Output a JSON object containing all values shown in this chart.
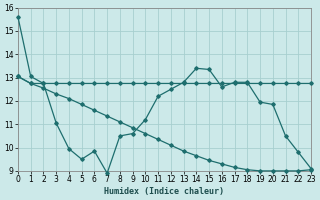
{
  "xlabel": "Humidex (Indice chaleur)",
  "xlim": [
    0,
    23
  ],
  "ylim": [
    9,
    16
  ],
  "yticks": [
    9,
    10,
    11,
    12,
    13,
    14,
    15,
    16
  ],
  "xticks": [
    0,
    1,
    2,
    3,
    4,
    5,
    6,
    7,
    8,
    9,
    10,
    11,
    12,
    13,
    14,
    15,
    16,
    17,
    18,
    19,
    20,
    21,
    22,
    23
  ],
  "bg_color": "#cce9e9",
  "grid_color": "#a8cfcf",
  "line_color": "#1e6e6e",
  "series1": [
    15.6,
    13.05,
    12.75,
    11.05,
    9.95,
    9.5,
    9.85,
    8.9,
    10.5,
    10.6,
    11.2,
    12.2,
    12.5,
    12.8,
    13.4,
    13.35,
    12.6,
    12.8,
    12.8,
    11.95,
    11.85,
    10.5,
    9.8,
    9.1
  ],
  "series2": [
    13.05,
    12.75,
    12.75,
    12.75,
    12.75,
    12.75,
    12.75,
    12.75,
    12.75,
    12.75,
    12.75,
    12.75,
    12.75,
    12.75,
    12.75,
    12.75,
    12.75,
    12.75,
    12.75,
    12.75,
    12.75,
    12.75,
    12.75,
    12.75
  ],
  "series3": [
    13.05,
    12.75,
    12.55,
    12.3,
    12.1,
    11.85,
    11.6,
    11.35,
    11.1,
    10.85,
    10.6,
    10.35,
    10.1,
    9.85,
    9.65,
    9.45,
    9.3,
    9.15,
    9.05,
    9.0,
    9.0,
    9.0,
    9.0,
    9.05
  ]
}
